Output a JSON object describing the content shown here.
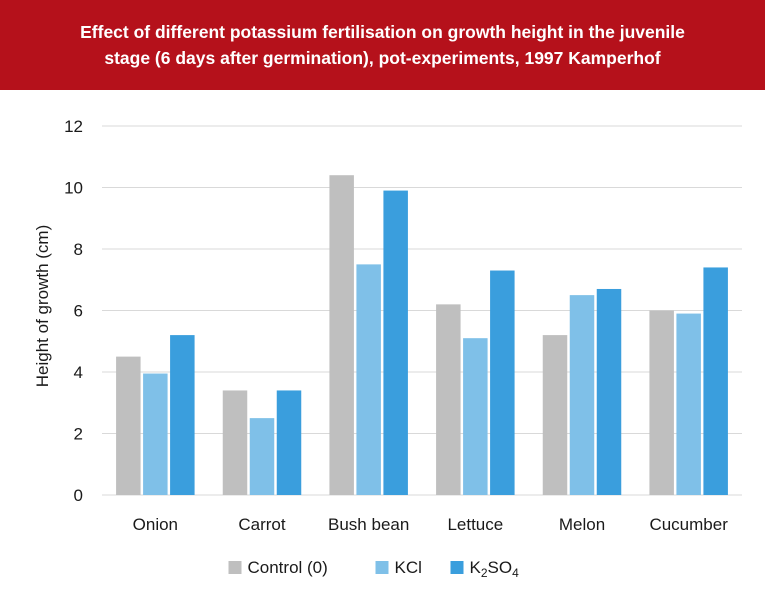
{
  "header": {
    "title_line1": "Effect of different potassium fertilisation on growth height in the juvenile",
    "title_line2": "stage (6 days after germination), pot-experiments, 1997 Kamperhof",
    "background": "#b5111b"
  },
  "chart_data": {
    "type": "bar",
    "title": "Effect of different potassium fertilisation on growth height in the juvenile stage (6 days after germination), pot-experiments, 1997 Kamperhof",
    "xlabel": "",
    "ylabel": "Height of growth (cm)",
    "ylim": [
      0,
      12
    ],
    "yticks": [
      0,
      2,
      4,
      6,
      8,
      10,
      12
    ],
    "grid": true,
    "legend_position": "bottom",
    "categories": [
      "Onion",
      "Carrot",
      "Bush bean",
      "Lettuce",
      "Melon",
      "Cucumber"
    ],
    "series": [
      {
        "name": "Control (0)",
        "color": "#bfbfbf",
        "values": [
          4.5,
          3.4,
          10.4,
          6.2,
          5.2,
          6.0
        ]
      },
      {
        "name": "KCl",
        "color": "#7fc0e8",
        "values": [
          3.95,
          2.5,
          7.5,
          5.1,
          6.5,
          5.9
        ]
      },
      {
        "name": "K2SO4",
        "color": "#3a9edd",
        "values": [
          5.2,
          3.4,
          9.9,
          7.3,
          6.7,
          7.4
        ]
      }
    ]
  }
}
